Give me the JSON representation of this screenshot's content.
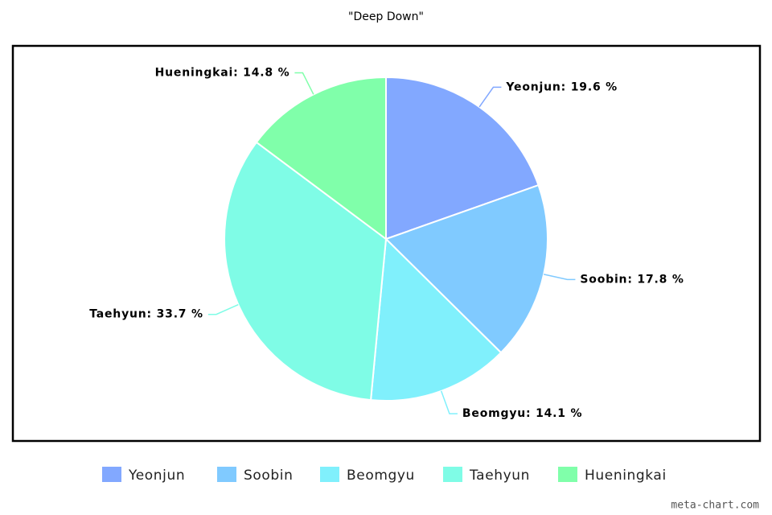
{
  "chart_data": {
    "type": "pie",
    "title": "\"Deep Down\"",
    "categories": [
      "Yeonjun",
      "Soobin",
      "Beomgyu",
      "Taehyun",
      "Hueningkai"
    ],
    "values": [
      19.6,
      17.8,
      14.1,
      33.7,
      14.8
    ],
    "value_labels": [
      "Yeonjun: 19.6 %",
      "Soobin: 17.8 %",
      "Beomgyu: 14.1 %",
      "Taehyun: 33.7 %",
      "Hueningkai: 14.8 %"
    ],
    "colors": [
      "#82a8ff",
      "#80caff",
      "#80f0fc",
      "#7ffce6",
      "#80ffaa"
    ],
    "legend": "bottom",
    "credit": "meta-chart.com"
  }
}
